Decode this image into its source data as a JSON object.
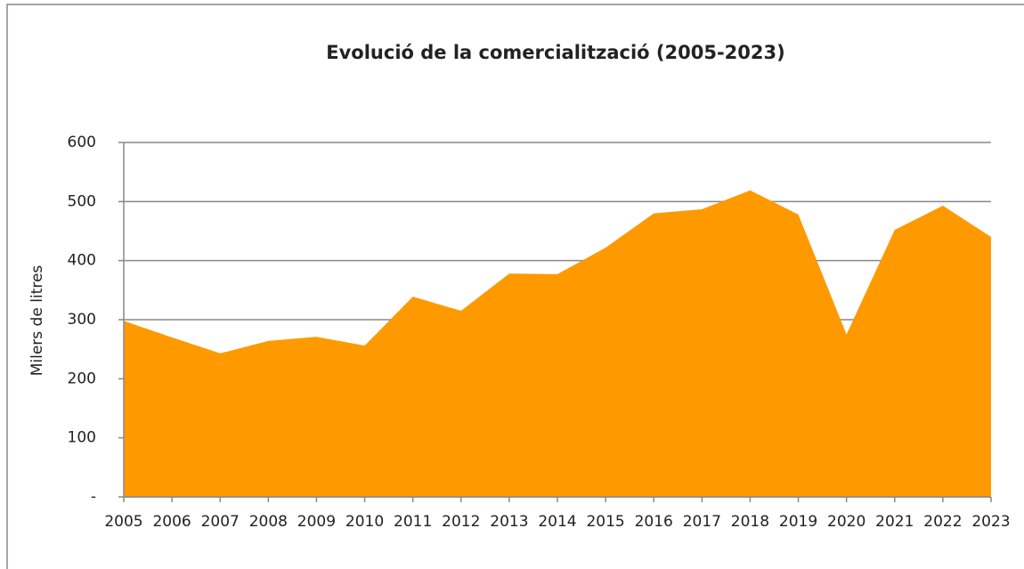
{
  "chart_data": {
    "type": "area",
    "title": "Evolució de la comercialització (2005-2023)",
    "y_label": "Milers de litres",
    "categories": [
      "2005",
      "2006",
      "2007",
      "2008",
      "2009",
      "2010",
      "2011",
      "2012",
      "2013",
      "2014",
      "2015",
      "2016",
      "2017",
      "2018",
      "2019",
      "2020",
      "2021",
      "2022",
      "2023"
    ],
    "values": [
      298,
      270,
      243,
      264,
      271,
      256,
      339,
      315,
      378,
      377,
      422,
      480,
      487,
      519,
      478,
      275,
      452,
      493,
      440
    ],
    "color": "#ff9900",
    "ylim": [
      0,
      600
    ],
    "yticks": [
      {
        "value": 0,
        "label": "-"
      },
      100,
      200,
      300,
      400,
      500,
      600
    ],
    "grid": true
  }
}
